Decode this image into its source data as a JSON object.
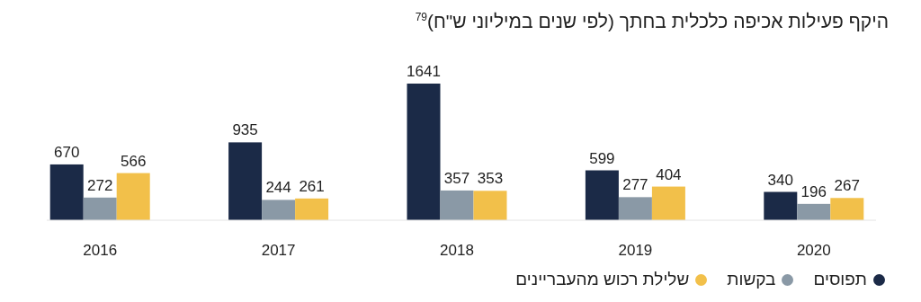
{
  "chart_data": {
    "type": "bar",
    "title": "היקף פעילות אכיפה כלכלית בחתך (לפי שנים במיליוני ש\"ח)$^{79}$",
    "categories": [
      "2016",
      "2017",
      "2018",
      "2019",
      "2020"
    ],
    "series": [
      {
        "name": "תפוסים",
        "color": "#1b2a47",
        "values": [
          670,
          935,
          1641,
          599,
          340
        ]
      },
      {
        "name": "בקשות",
        "color": "#8a99a6",
        "values": [
          272,
          244,
          357,
          277,
          196
        ]
      },
      {
        "name": "שלילת רכוש מהעבריינים",
        "color": "#f2c04a",
        "values": [
          566,
          261,
          353,
          404,
          267
        ]
      }
    ],
    "data_labels": true,
    "legend": "bottom right"
  }
}
